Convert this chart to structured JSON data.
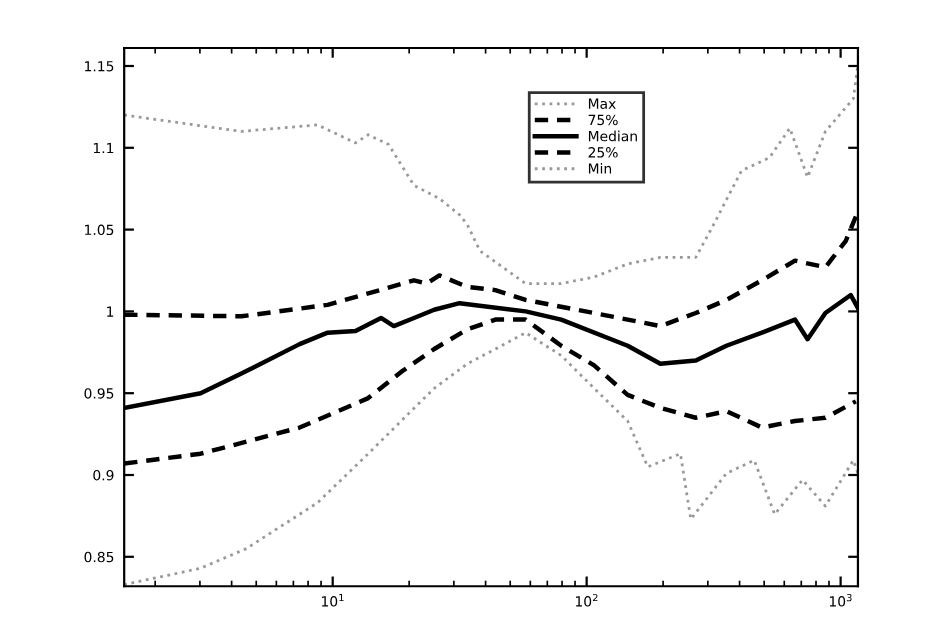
{
  "chart_data": {
    "type": "line",
    "log": "x",
    "legend": "top",
    "grid": false,
    "xlim": [
      1.51,
      1170
    ],
    "ylim": [
      0.832,
      1.161
    ],
    "xticks": [
      {
        "value": 10,
        "label": "10$^{1}$"
      },
      {
        "value": 100,
        "label": "10$^{2}$"
      },
      {
        "value": 1000,
        "label": "10$^{3}$"
      }
    ],
    "yticks": [
      0.85,
      0.9,
      0.95,
      1,
      1.05,
      1.1,
      1.15
    ],
    "series": [
      {
        "name": "Max",
        "color": "#999999",
        "line_style": "dotted",
        "x": [
          1.51,
          4.37,
          8.71,
          12.3,
          13.8,
          16.6,
          20.9,
          26.3,
          31.6,
          33.9,
          38,
          57.5,
          79.4,
          107,
          145,
          195,
          269,
          316,
          407,
          525,
          631,
          741,
          871,
          1122,
          1170
        ],
        "values": [
          1.12,
          1.11,
          1.114,
          1.103,
          1.108,
          1.102,
          1.077,
          1.069,
          1.059,
          1.053,
          1.037,
          1.017,
          1.017,
          1.021,
          1.029,
          1.033,
          1.033,
          1.053,
          1.086,
          1.094,
          1.112,
          1.082,
          1.11,
          1.13,
          1.151
        ]
      },
      {
        "name": "75%",
        "color": "#000000",
        "line_style": "dashed",
        "x": [
          1.51,
          4.37,
          9.55,
          13.8,
          20.9,
          23.4,
          26.3,
          33.9,
          43.7,
          57.5,
          107,
          145,
          195,
          269,
          355,
          490,
          661,
          871,
          1047,
          1148
        ],
        "values": [
          0.998,
          0.997,
          1.004,
          1.011,
          1.019,
          1.017,
          1.022,
          1.015,
          1.013,
          1.007,
          0.999,
          0.995,
          0.991,
          0.999,
          1.007,
          1.019,
          1.031,
          1.027,
          1.043,
          1.058
        ]
      },
      {
        "name": "Median",
        "color": "#000000",
        "line_style": "solid",
        "x": [
          1.51,
          3.02,
          4.37,
          7.41,
          9.55,
          12.3,
          15.5,
          17.4,
          20.9,
          25.1,
          31.6,
          57.5,
          79.4,
          145,
          195,
          269,
          355,
          490,
          661,
          741,
          871,
          1096,
          1170
        ],
        "values": [
          0.941,
          0.95,
          0.962,
          0.98,
          0.987,
          0.988,
          0.996,
          0.991,
          0.996,
          1.001,
          1.005,
          1.0,
          0.995,
          0.979,
          0.968,
          0.97,
          0.979,
          0.987,
          0.995,
          0.983,
          0.999,
          1.01,
          1.002
        ]
      },
      {
        "name": "25%",
        "color": "#000000",
        "line_style": "dashed",
        "x": [
          1.51,
          3.02,
          7.41,
          13.8,
          18.6,
          25.1,
          33.9,
          43.7,
          57.5,
          79.4,
          107,
          145,
          195,
          269,
          355,
          490,
          661,
          871,
          1148
        ],
        "values": [
          0.907,
          0.913,
          0.929,
          0.947,
          0.963,
          0.977,
          0.989,
          0.995,
          0.995,
          0.979,
          0.967,
          0.949,
          0.941,
          0.935,
          0.939,
          0.929,
          0.933,
          0.935,
          0.945
        ]
      },
      {
        "name": "Min",
        "color": "#999999",
        "line_style": "dotted",
        "x": [
          1.51,
          3.02,
          4.57,
          8.71,
          13.8,
          18.6,
          25.1,
          33.9,
          43.7,
          57.5,
          79.4,
          107,
          145,
          174,
          234,
          257,
          355,
          457,
          550,
          708,
          871,
          1122,
          1170
        ],
        "values": [
          0.833,
          0.843,
          0.855,
          0.883,
          0.913,
          0.933,
          0.953,
          0.968,
          0.977,
          0.987,
          0.973,
          0.953,
          0.933,
          0.905,
          0.913,
          0.873,
          0.901,
          0.909,
          0.876,
          0.897,
          0.881,
          0.909,
          0.901
        ]
      }
    ]
  }
}
